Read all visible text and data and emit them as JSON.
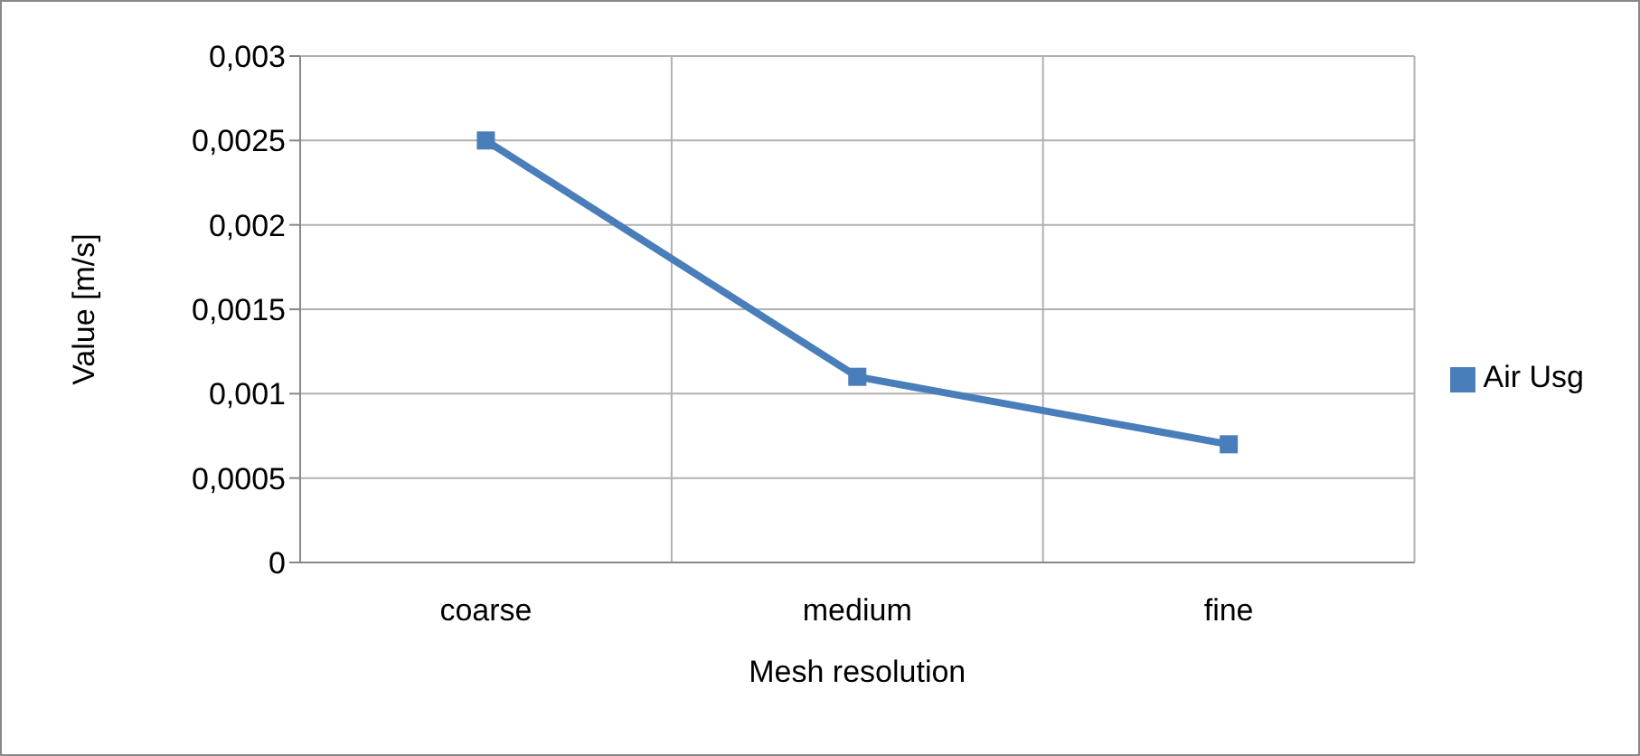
{
  "chart_data": {
    "type": "line",
    "xlabel": "Mesh resolution",
    "ylabel": "Value [m/s]",
    "categories": [
      "coarse",
      "medium",
      "fine"
    ],
    "series": [
      {
        "name": "Air Usg",
        "color": "#4a7ebb",
        "values": [
          0.0025,
          0.0011,
          0.0007
        ]
      }
    ],
    "ylim": [
      0,
      0.003
    ],
    "yticks": [
      0,
      {
        "value": 0.0005,
        "label": "0,0005"
      },
      {
        "value": 0.001,
        "label": "0,001"
      },
      {
        "value": 0.0015,
        "label": "0,0015"
      },
      {
        "value": 0.002,
        "label": "0,002"
      },
      {
        "value": 0.0025,
        "label": "0,0025"
      },
      {
        "value": 0.003,
        "label": "0,003"
      }
    ],
    "grid": true,
    "legend": "right",
    "marker": "square",
    "line_style": "solid"
  }
}
